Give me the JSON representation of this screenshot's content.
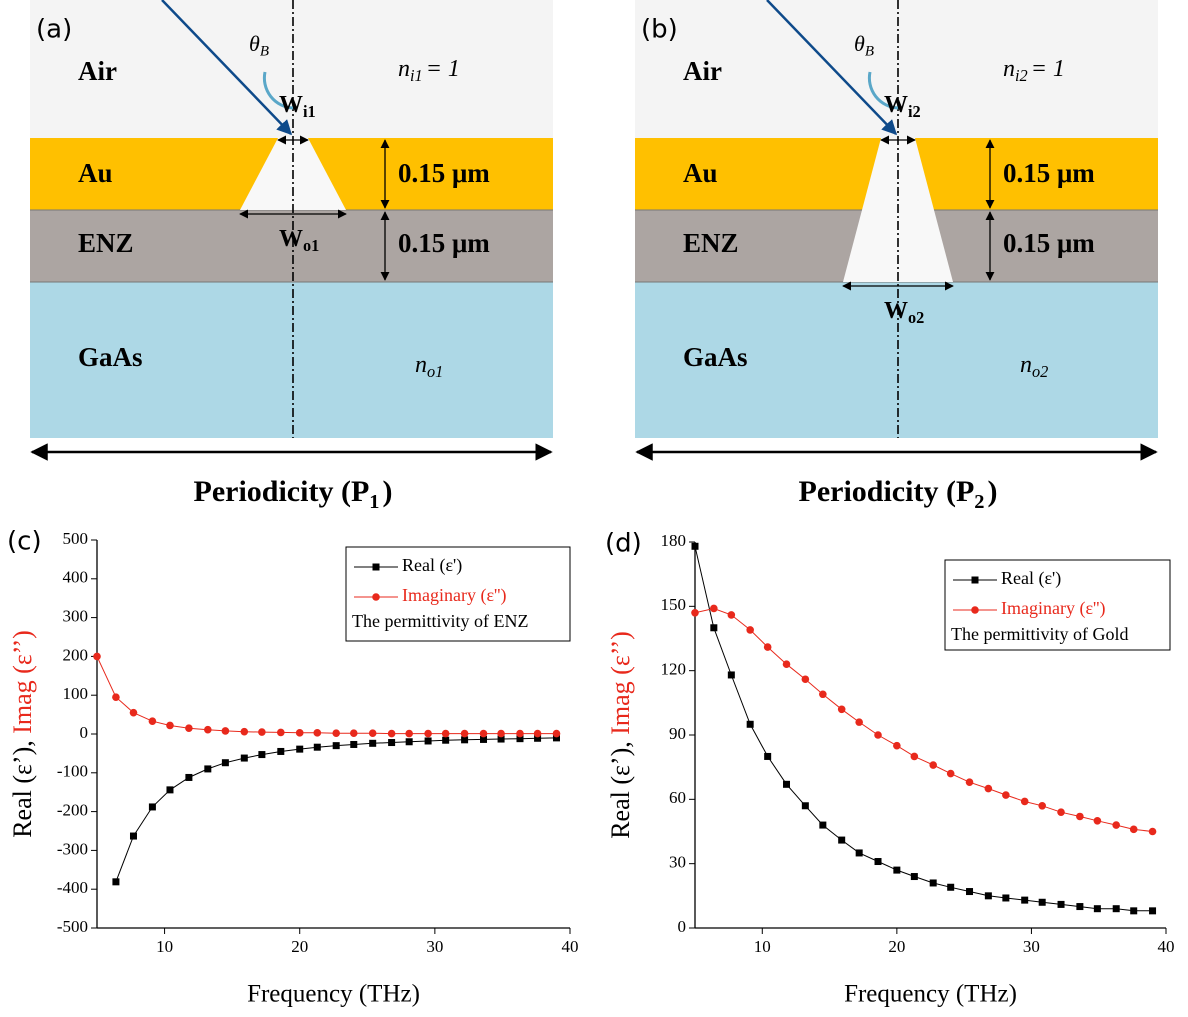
{
  "diagrams": [
    {
      "panel": "(a)",
      "air": "Air",
      "au": "Au",
      "enz": "ENZ",
      "gaas": "GaAs",
      "angle": {
        "main": "θ",
        "sub": "B"
      },
      "n_in": {
        "main": "n",
        "sub": "i1",
        "rest": "= 1"
      },
      "w_in": {
        "main": "W",
        "sub": "i1"
      },
      "w_out": {
        "main": "W",
        "sub": "o1"
      },
      "thickness_au": "0.15 μm",
      "thickness_enz": "0.15 μm",
      "n_out": {
        "main": "n",
        "sub": "o1"
      },
      "periodicity": {
        "main": "Periodicity (P",
        "sub": "1",
        "rest": ")"
      }
    },
    {
      "panel": "(b)",
      "air": "Air",
      "au": "Au",
      "enz": "ENZ",
      "gaas": "GaAs",
      "angle": {
        "main": "θ",
        "sub": "B"
      },
      "n_in": {
        "main": "n",
        "sub": "i2",
        "rest": "= 1"
      },
      "w_in": {
        "main": "W",
        "sub": "i2"
      },
      "w_out": {
        "main": "W",
        "sub": "o2"
      },
      "thickness_au": "0.15 μm",
      "thickness_enz": "0.15 μm",
      "n_out": {
        "main": "n",
        "sub": "o2"
      },
      "periodicity": {
        "main": "Periodicity (P",
        "sub": "2",
        "rest": ")"
      }
    }
  ],
  "chart_data": [
    {
      "type": "line",
      "panel": "(c)",
      "xlabel": "Frequency (THz)",
      "ylabel_parts": [
        {
          "text": "Real (ε’), ",
          "color": "#000000"
        },
        {
          "text": "Imag (ε’’)",
          "color": "#e8291c"
        }
      ],
      "note": "The permittivity of ENZ",
      "legend": "upper right",
      "xlim": [
        5,
        40
      ],
      "xticks": [
        10,
        20,
        30,
        40
      ],
      "ylim": [
        -500,
        500
      ],
      "yticks": [
        -500,
        -400,
        -300,
        -200,
        -100,
        0,
        100,
        200,
        300,
        400,
        500
      ],
      "x": [
        5,
        6.4,
        7.7,
        9.1,
        10.4,
        11.8,
        13.2,
        14.5,
        15.9,
        17.2,
        18.6,
        20,
        21.3,
        22.7,
        24,
        25.4,
        26.8,
        28.1,
        29.5,
        30.8,
        32.2,
        33.6,
        34.9,
        36.3,
        37.6,
        39
      ],
      "series": [
        {
          "name": "Real (ε')",
          "color": "#000000",
          "marker": "square",
          "values": [
            null,
            -381,
            -263,
            -188,
            -144,
            -112,
            -90,
            -74,
            -62,
            -53,
            -45,
            -39,
            -34,
            -30,
            -27,
            -24,
            -22,
            -20,
            -18,
            -16,
            -15,
            -14,
            -13,
            -12,
            -11,
            -10
          ]
        },
        {
          "name": "Imaginary (ε'')",
          "color": "#e8291c",
          "marker": "circle",
          "values": [
            200,
            95,
            55,
            33,
            22,
            15,
            11,
            8,
            6,
            5,
            4,
            3,
            3,
            2,
            2,
            2,
            1,
            1,
            1,
            1,
            1,
            1,
            1,
            1,
            1,
            1
          ]
        }
      ]
    },
    {
      "type": "line",
      "panel": "(d)",
      "xlabel": "Frequency (THz)",
      "ylabel_parts": [
        {
          "text": "Real (ε’), ",
          "color": "#000000"
        },
        {
          "text": "Imag (ε’’)",
          "color": "#e8291c"
        }
      ],
      "note": "The permittivity of Gold",
      "legend": "upper right",
      "xlim": [
        5,
        40
      ],
      "xticks": [
        10,
        20,
        30,
        40
      ],
      "ylim": [
        0,
        180
      ],
      "yticks": [
        0,
        30,
        60,
        90,
        120,
        150,
        180
      ],
      "x": [
        5,
        6.4,
        7.7,
        9.1,
        10.4,
        11.8,
        13.2,
        14.5,
        15.9,
        17.2,
        18.6,
        20,
        21.3,
        22.7,
        24,
        25.4,
        26.8,
        28.1,
        29.5,
        30.8,
        32.2,
        33.6,
        34.9,
        36.3,
        37.6,
        39
      ],
      "series": [
        {
          "name": "Real (ε')",
          "color": "#000000",
          "marker": "square",
          "values": [
            178,
            140,
            118,
            95,
            80,
            67,
            57,
            48,
            41,
            35,
            31,
            27,
            24,
            21,
            19,
            17,
            15,
            14,
            13,
            12,
            11,
            10,
            9,
            9,
            8,
            8
          ]
        },
        {
          "name": "Imaginary (ε'')",
          "color": "#e8291c",
          "marker": "circle",
          "values": [
            147,
            149,
            146,
            139,
            131,
            123,
            116,
            109,
            102,
            96,
            90,
            85,
            80,
            76,
            72,
            68,
            65,
            62,
            59,
            57,
            54,
            52,
            50,
            48,
            46,
            45
          ]
        }
      ]
    }
  ]
}
